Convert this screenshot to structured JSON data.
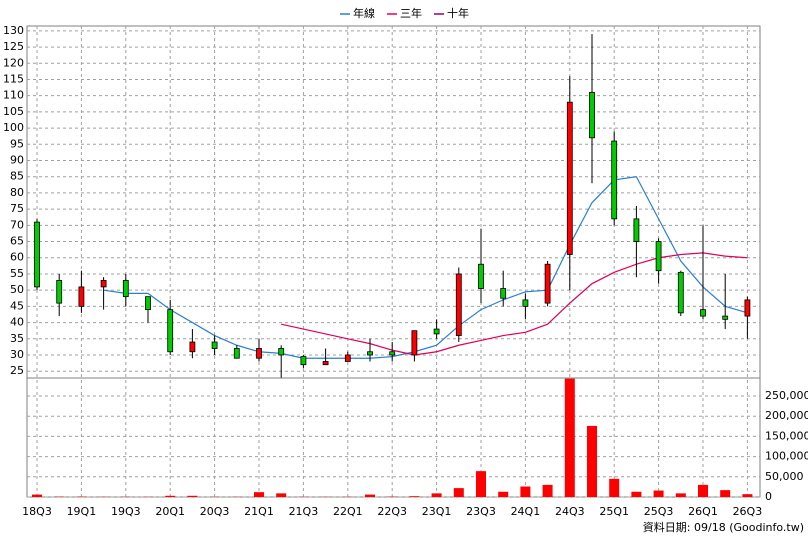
{
  "chart_data": {
    "type": "candlestick",
    "categories": [
      "18Q3",
      null,
      "19Q1",
      null,
      "19Q3",
      null,
      "20Q1",
      null,
      "20Q3",
      null,
      "21Q1",
      null,
      "21Q3",
      null,
      "22Q1",
      null,
      "22Q3",
      null,
      "23Q1",
      null,
      "23Q3",
      null,
      "24Q1",
      null,
      "24Q3",
      null,
      "25Q1",
      null,
      "25Q3",
      null,
      "26Q1",
      null,
      "26Q3"
    ],
    "open": [
      71,
      53,
      45,
      51,
      53,
      48,
      44,
      31,
      34,
      32,
      29,
      32,
      29.5,
      27,
      28,
      31,
      31,
      30,
      38,
      36,
      58,
      50.5,
      47,
      46,
      61,
      111,
      96,
      72,
      65,
      55.5,
      44,
      42,
      42
    ],
    "high": [
      72,
      55,
      56,
      54,
      55,
      48,
      47,
      38,
      36,
      33,
      35,
      33,
      30,
      32,
      31,
      35,
      34,
      37.5,
      41,
      57,
      69,
      56,
      49,
      59,
      116,
      129,
      99,
      76,
      66,
      56,
      70,
      55,
      48
    ],
    "low": [
      50,
      42,
      43,
      44,
      45,
      40,
      30,
      29,
      30,
      29,
      28,
      23,
      26,
      27,
      28,
      28,
      28,
      28,
      35,
      34,
      46,
      45,
      41,
      45,
      50,
      83,
      70,
      54,
      52,
      42,
      41,
      38,
      35
    ],
    "close": [
      51,
      46,
      51,
      53,
      48,
      44,
      31,
      34,
      32,
      29,
      32,
      30,
      27,
      28,
      30,
      30,
      30,
      37.5,
      36.5,
      55,
      50.5,
      47.5,
      45,
      58,
      108,
      97,
      72,
      65,
      56,
      43,
      42,
      41,
      47
    ],
    "up_color": "#ff0000",
    "down_color": "#00cc00",
    "series": [
      {
        "name": "年線",
        "color": "#2a7fd4",
        "values": [
          null,
          null,
          null,
          50,
          49,
          49,
          44,
          40,
          36,
          33,
          31,
          30.5,
          29,
          29,
          29,
          29,
          29.5,
          31,
          33,
          39,
          44,
          47,
          49.5,
          50,
          64,
          77,
          84,
          85,
          72,
          59,
          51,
          45,
          43
        ]
      },
      {
        "name": "三年",
        "color": "#e0005a",
        "values": [
          null,
          null,
          null,
          null,
          null,
          null,
          null,
          null,
          null,
          null,
          null,
          39.5,
          38,
          36.5,
          35,
          33.5,
          31.5,
          30,
          31,
          33,
          34.5,
          36,
          37,
          39.5,
          46,
          52,
          55.5,
          58,
          60,
          61,
          61.5,
          60.5,
          60
        ]
      },
      {
        "name": "十年",
        "color": "#9a0078",
        "values": [
          null,
          null,
          null,
          null,
          null,
          null,
          null,
          null,
          null,
          null,
          null,
          null,
          null,
          null,
          null,
          null,
          null,
          null,
          null,
          null,
          null,
          null,
          null,
          null,
          null,
          null,
          null,
          null,
          null,
          null,
          null,
          null,
          null
        ]
      }
    ],
    "ylim": [
      22.9,
      131.5
    ],
    "yticks": [
      25,
      30,
      35,
      40,
      45,
      50,
      55,
      60,
      65,
      70,
      75,
      80,
      85,
      90,
      95,
      100,
      105,
      110,
      115,
      120,
      125,
      130
    ],
    "grid": true,
    "legend": "top",
    "volume": {
      "color": "#ff0000",
      "values": [
        6000,
        1000,
        1000,
        500,
        500,
        500,
        3000,
        3000,
        500,
        500,
        12000,
        9000,
        500,
        500,
        500,
        6000,
        1000,
        2000,
        9000,
        22000,
        64000,
        13000,
        26000,
        30000,
        293000,
        176000,
        45000,
        13000,
        16000,
        9000,
        30000,
        17000,
        7000
      ],
      "ylim": [
        0,
        294600
      ],
      "yticks": [
        0,
        {
          "value": 50000,
          "label": "50,000"
        },
        {
          "value": 100000,
          "label": "100,000"
        },
        {
          "value": 150000,
          "label": "150,000"
        },
        {
          "value": 200000,
          "label": "200,000"
        },
        {
          "value": 250000,
          "label": "250,000"
        }
      ]
    },
    "source": "資料日期: 09/18 (Goodinfo.tw)"
  }
}
